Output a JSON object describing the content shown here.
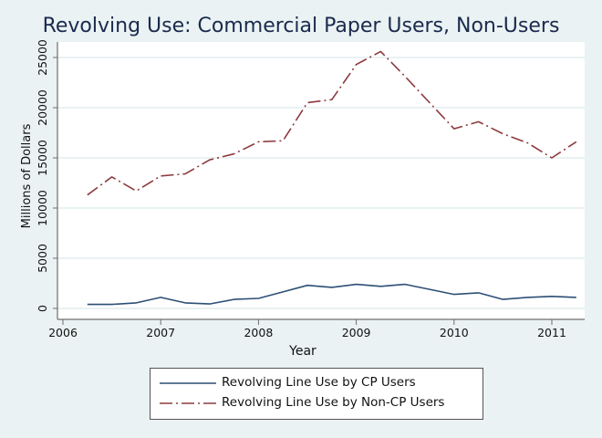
{
  "chart_data": {
    "type": "line",
    "title": "Revolving Use: Commercial Paper Users, Non-Users",
    "xlabel": "Year",
    "ylabel": "Millions of Dollars",
    "xlim": [
      2006,
      2011.35
    ],
    "ylim": [
      -700,
      26300
    ],
    "xticks": [
      2006,
      2007,
      2008,
      2009,
      2010,
      2011
    ],
    "xtick_labels": [
      "2006",
      "2007",
      "2008",
      "2009",
      "2010",
      "2011"
    ],
    "yticks": [
      0,
      5000,
      10000,
      15000,
      20000,
      25000
    ],
    "ytick_labels": [
      "0",
      "5000",
      "10000",
      "15000",
      "20000",
      "25000"
    ],
    "grid": true,
    "legend_position": "bottom",
    "x": [
      2006.25,
      2006.5,
      2006.75,
      2007.0,
      2007.25,
      2007.5,
      2007.75,
      2008.0,
      2008.25,
      2008.5,
      2008.75,
      2009.0,
      2009.25,
      2009.5,
      2009.75,
      2010.0,
      2010.25,
      2010.5,
      2010.75,
      2011.0,
      2011.25
    ],
    "series": [
      {
        "name": "Revolving Line Use by CP Users",
        "color": "#2d4f75",
        "style": "solid",
        "values": [
          400,
          400,
          550,
          1100,
          550,
          450,
          900,
          1000,
          1650,
          2300,
          2100,
          2400,
          2200,
          2400,
          1900,
          1400,
          1550,
          900,
          1100,
          1200,
          1100
        ]
      },
      {
        "name": "Revolving Line Use by Non-CP Users",
        "color": "#8c3a3f",
        "style": "dash-dot",
        "values": [
          11300,
          13100,
          11700,
          13200,
          13400,
          14800,
          15400,
          16600,
          16700,
          20500,
          20800,
          24300,
          25600,
          23100,
          20500,
          17900,
          18600,
          17400,
          16500,
          15000,
          16600
        ]
      }
    ]
  },
  "colors": {
    "background": "#eaf2f3",
    "plot_background": "#ffffff",
    "title": "#1a2a4d",
    "grid": "#eaf2f3",
    "axis": "#6e6e6e"
  }
}
